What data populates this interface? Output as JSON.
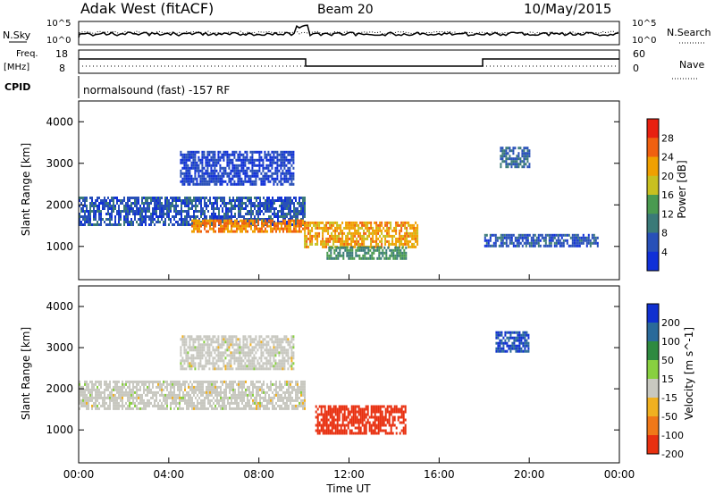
{
  "header": {
    "station": "Adak West (fitACF)",
    "beam": "Beam 20",
    "date": "10/May/2015"
  },
  "summary": {
    "nsky_label": "N.Sky",
    "nsearch_label": "N.Search",
    "freq_label_line1": "Freq.",
    "freq_label_line2": "[MHz]",
    "nave_label": "Nave",
    "cpid_label": "CPID",
    "cpid_value": "normalsound (fast) -157 RF",
    "noise_ticks_left": [
      "10^5",
      "10^0"
    ],
    "noise_ticks_right": [
      "10^5",
      "10^0"
    ],
    "freq_ticks": [
      "18",
      "8"
    ],
    "nave_ticks": [
      "60",
      "0"
    ]
  },
  "colors": {
    "power_scale": [
      "#1030d8",
      "#2850b8",
      "#3a7a78",
      "#4a9a50",
      "#c8c020",
      "#f0a000",
      "#f06010",
      "#e82010"
    ],
    "velocity_scale": [
      "#1030d0",
      "#2a6a9a",
      "#2e8a40",
      "#88d040",
      "#c8c8c0",
      "#f0b020",
      "#f07818",
      "#e83010"
    ],
    "ground_scatter": "#c8c8c0"
  },
  "chart_data": [
    {
      "type": "heatmap",
      "panel": "power",
      "ylabel": "Slant Range [km]",
      "colorbar_label": "Power [dB]",
      "colorbar_ticks": [
        "28",
        "24",
        "20",
        "16",
        "12",
        "8",
        "4"
      ],
      "x_ticks": [
        "00:00",
        "04:00",
        "08:00",
        "12:00",
        "16:00",
        "20:00",
        "00:00"
      ],
      "y_ticks": [
        "4000",
        "3000",
        "2000",
        "1000"
      ],
      "ylim": [
        200,
        4500
      ],
      "xlim_hours": [
        0,
        24
      ],
      "regions": [
        {
          "t": [
            0,
            10
          ],
          "r": [
            1500,
            2200
          ],
          "power": 6
        },
        {
          "t": [
            4.5,
            9.5
          ],
          "r": [
            2500,
            3300
          ],
          "power": 4
        },
        {
          "t": [
            5,
            10
          ],
          "r": [
            1350,
            1650
          ],
          "power": 24
        },
        {
          "t": [
            10,
            15
          ],
          "r": [
            1000,
            1600
          ],
          "power": 22
        },
        {
          "t": [
            11,
            14.5
          ],
          "r": [
            700,
            1000
          ],
          "power": 12
        },
        {
          "t": [
            18,
            23
          ],
          "r": [
            1000,
            1300
          ],
          "power": 6
        },
        {
          "t": [
            18.7,
            20
          ],
          "r": [
            2900,
            3400
          ],
          "power": 8
        }
      ]
    },
    {
      "type": "heatmap",
      "panel": "velocity",
      "ylabel": "Slant Range [km]",
      "colorbar_label": "Velocity [m s^-1]",
      "colorbar_ticks": [
        "200",
        "100",
        "50",
        "15",
        "-15",
        "-50",
        "-100",
        "-200"
      ],
      "x_ticks": [
        "00:00",
        "04:00",
        "08:00",
        "12:00",
        "16:00",
        "20:00",
        "00:00"
      ],
      "y_ticks": [
        "4000",
        "3000",
        "2000",
        "1000"
      ],
      "ylim": [
        200,
        4500
      ],
      "xlim_hours": [
        0,
        24
      ],
      "xlabel": "Time UT",
      "regions": [
        {
          "t": [
            0,
            10
          ],
          "r": [
            1500,
            2200
          ],
          "velocity": 0
        },
        {
          "t": [
            4.5,
            9.5
          ],
          "r": [
            2500,
            3300
          ],
          "velocity": 0
        },
        {
          "t": [
            10.5,
            14.5
          ],
          "r": [
            900,
            1600
          ],
          "velocity": -150
        },
        {
          "t": [
            18.5,
            20
          ],
          "r": [
            2900,
            3400
          ],
          "velocity": 150
        }
      ]
    }
  ]
}
